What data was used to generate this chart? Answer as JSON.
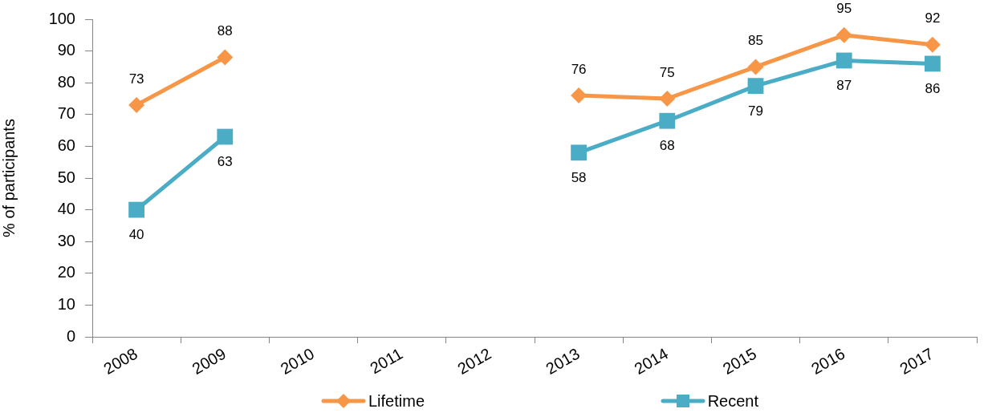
{
  "chart_data": {
    "type": "line",
    "ylabel": "% of participants",
    "categories": [
      "2008",
      "2009",
      "2010",
      "2011",
      "2012",
      "2013",
      "2014",
      "2015",
      "2016",
      "2017"
    ],
    "series": [
      {
        "name": "Lifetime",
        "color": "#f79646",
        "marker": "diamond",
        "values": [
          73,
          88,
          null,
          null,
          null,
          76,
          75,
          85,
          95,
          92
        ]
      },
      {
        "name": "Recent",
        "color": "#4bacc6",
        "marker": "square",
        "values": [
          40,
          63,
          null,
          null,
          null,
          58,
          68,
          79,
          87,
          86
        ]
      }
    ],
    "ylim": [
      0,
      100
    ],
    "yticks": [
      0,
      10,
      20,
      30,
      40,
      50,
      60,
      70,
      80,
      90,
      100
    ],
    "grid": false,
    "legend": "bottom",
    "data_labels": true,
    "line_style": "solid"
  }
}
